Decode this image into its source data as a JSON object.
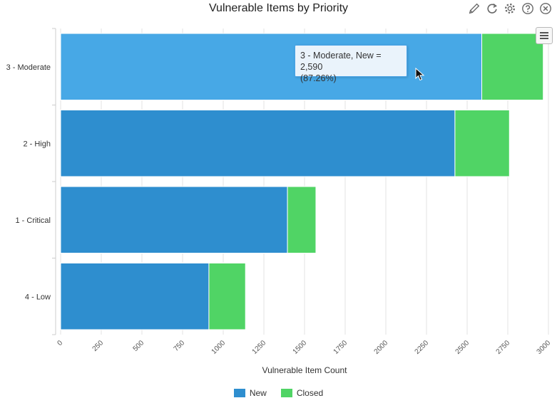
{
  "chart_data": {
    "type": "bar",
    "orientation": "horizontal",
    "stacked": true,
    "title": "Vulnerable Items by Priority",
    "xlabel": "Vulnerable Item Count",
    "ylabel": "",
    "xlim": [
      0,
      3000
    ],
    "xticks": [
      "0",
      "250",
      "500",
      "750",
      "1000",
      "1250",
      "1500",
      "1750",
      "2000",
      "2250",
      "2500",
      "2750",
      "3000"
    ],
    "categories": [
      "3 - Moderate",
      "2 - High",
      "1 - Critical",
      "4 - Low"
    ],
    "series": [
      {
        "name": "New",
        "values": [
          2590,
          2425,
          1395,
          912
        ],
        "color": "#2e8ecf",
        "highlight_color": "#47a8e6"
      },
      {
        "name": "Closed",
        "values": [
          378,
          335,
          175,
          225
        ],
        "color": "#50d465"
      }
    ],
    "grid": true,
    "legend_position": "bottom-center"
  },
  "tooltip": {
    "line1": "3 - Moderate, New = 2,590",
    "line2": "(87.26%)"
  },
  "toolbar": {
    "icons": [
      "pencil-icon",
      "refresh-icon",
      "gear-icon",
      "help-icon",
      "close-icon"
    ]
  }
}
